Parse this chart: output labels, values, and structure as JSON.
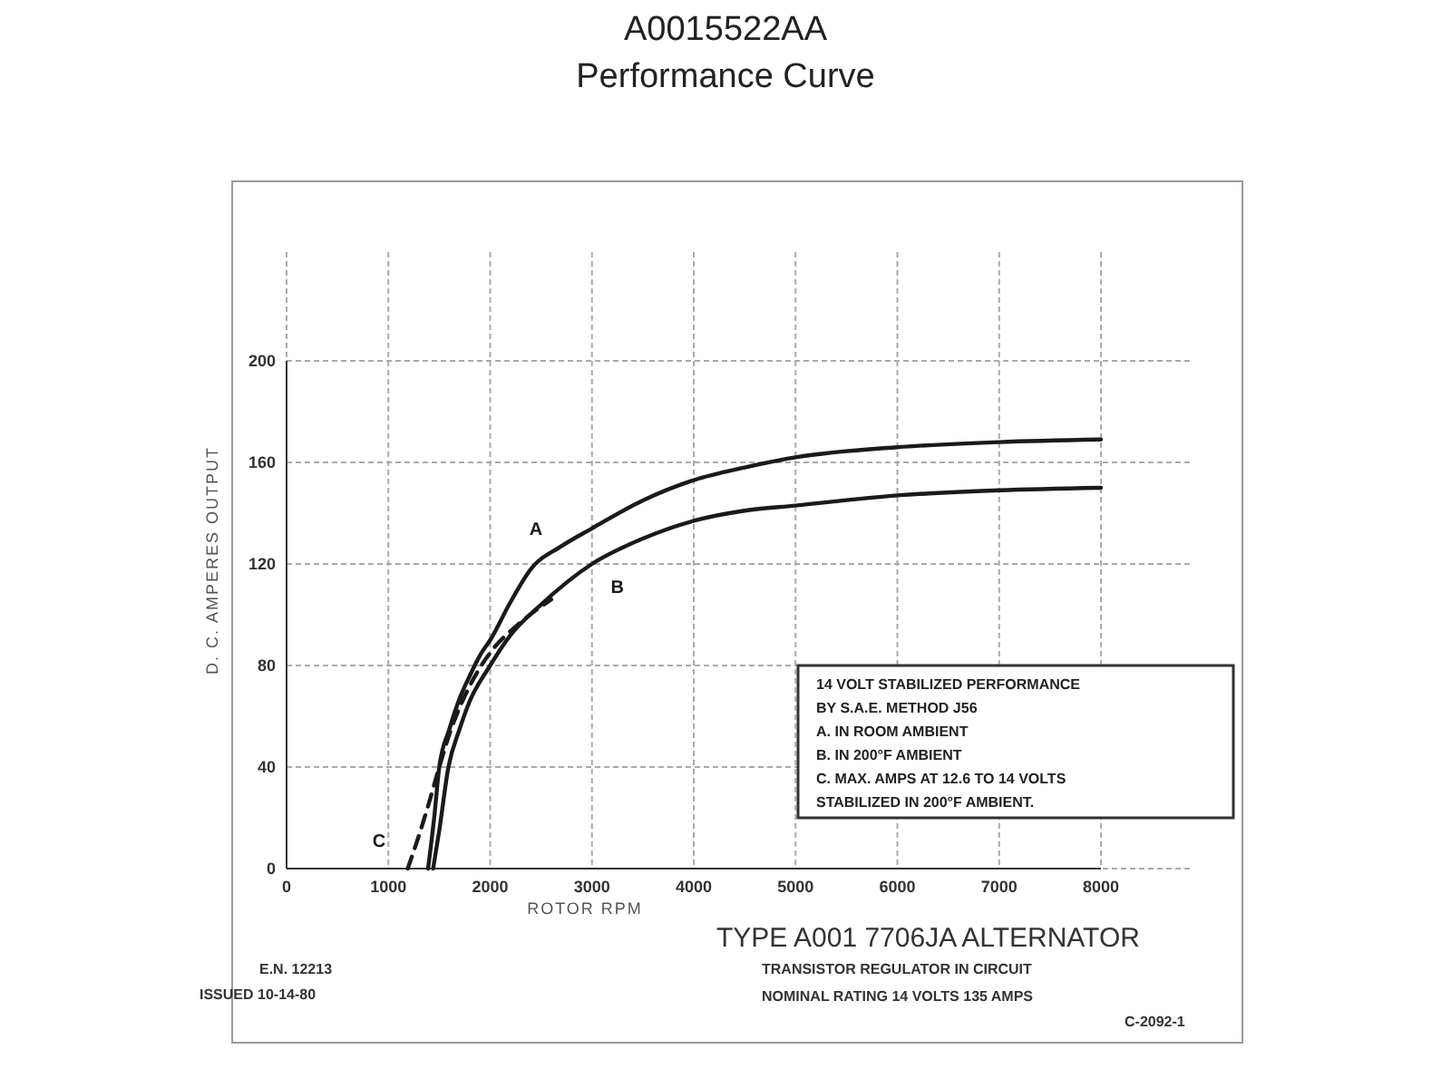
{
  "chart_data": {
    "type": "line",
    "title": "A0015522AA",
    "subtitle": "Performance Curve",
    "xlabel": "ROTOR RPM",
    "ylabel": "D. C. AMPERES OUTPUT",
    "xlim": [
      0,
      8000
    ],
    "ylim": [
      0,
      200
    ],
    "xticks": [
      0,
      1000,
      2000,
      3000,
      4000,
      5000,
      6000,
      7000,
      8000
    ],
    "yticks": [
      0,
      40,
      80,
      120,
      160,
      200
    ],
    "grid": true,
    "series": [
      {
        "name": "A",
        "color": "#1a1a1a",
        "line_style": "solid",
        "x": [
          1390,
          1450,
          1500,
          1600,
          1700,
          1800,
          1900,
          2000,
          2200,
          2400,
          2700,
          3000,
          3500,
          4000,
          4500,
          5000,
          6000,
          7000,
          8000
        ],
        "values": [
          0,
          20,
          40,
          55,
          67,
          76,
          84,
          90,
          105,
          118,
          127,
          134,
          145,
          153,
          158,
          162,
          166,
          168,
          169
        ]
      },
      {
        "name": "B",
        "color": "#1a1a1a",
        "line_style": "solid",
        "x": [
          1440,
          1500,
          1590,
          1700,
          1800,
          2000,
          2200,
          2500,
          3000,
          3500,
          4000,
          4500,
          5000,
          6000,
          7000,
          8000
        ],
        "values": [
          0,
          15,
          40,
          55,
          66,
          80,
          92,
          104,
          120,
          130,
          137,
          141,
          143,
          147,
          149,
          150
        ]
      },
      {
        "name": "C",
        "color": "#1a1a1a",
        "line_style": "dashed",
        "x": [
          1190,
          1300,
          1400,
          1500,
          1600,
          1800,
          2000,
          2300,
          2600
        ],
        "values": [
          0,
          13,
          26,
          40,
          53,
          72,
          85,
          97,
          106
        ]
      }
    ],
    "annotations": [
      "14 VOLT STABILIZED PERFORMANCE",
      "BY S.A.E. METHOD J56",
      "A. IN ROOM AMBIENT",
      "B. IN 200°F AMBIENT",
      "C. MAX. AMPS AT 12.6 TO 14 VOLTS",
      "STABILIZED IN 200°F AMBIENT.",
      "TYPE A001 7706JA ALTERNATOR",
      "TRANSISTOR REGULATOR IN CIRCUIT",
      "NOMINAL RATING 14 VOLTS 135 AMPS",
      "E.N. 12213",
      "ISSUED 10-14-80",
      "C-2092-1"
    ]
  }
}
